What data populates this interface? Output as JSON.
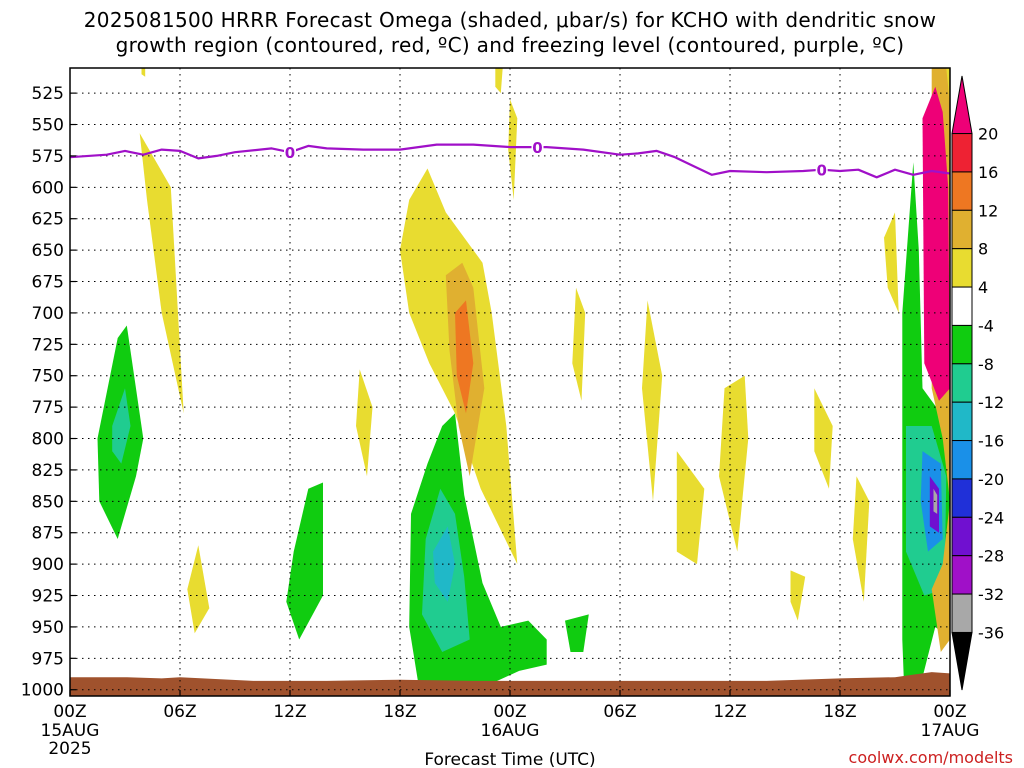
{
  "chart_data": {
    "type": "heatmap",
    "title_line1": "2025081500 HRRR Forecast Omega (shaded, μbar/s) for KCHO with dendritic snow",
    "title_line2": "growth region (contoured, red, ºC) and freezing level (contoured, purple, ºC)",
    "xlabel": "Forecast Time (UTC)",
    "credit": "coolwx.com/modelts",
    "x_ticks": [
      {
        "hours": 0,
        "label": "00Z"
      },
      {
        "hours": 6,
        "label": "06Z"
      },
      {
        "hours": 12,
        "label": "12Z"
      },
      {
        "hours": 18,
        "label": "18Z"
      },
      {
        "hours": 24,
        "label": "00Z"
      },
      {
        "hours": 30,
        "label": "06Z"
      },
      {
        "hours": 36,
        "label": "12Z"
      },
      {
        "hours": 42,
        "label": "18Z"
      },
      {
        "hours": 48,
        "label": "00Z"
      }
    ],
    "date_labels": [
      {
        "hours": 0,
        "lines": [
          "15AUG",
          "2025"
        ]
      },
      {
        "hours": 24,
        "lines": [
          "16AUG"
        ]
      },
      {
        "hours": 48,
        "lines": [
          "17AUG"
        ]
      }
    ],
    "y_ticks": [
      525,
      550,
      575,
      600,
      625,
      650,
      675,
      700,
      725,
      750,
      775,
      800,
      825,
      850,
      875,
      900,
      925,
      950,
      975,
      1000
    ],
    "ylim_hPa": [
      505,
      1005
    ],
    "xlim_hours": [
      0,
      48
    ],
    "grid": true,
    "colorbar": {
      "levels": [
        {
          "label": "",
          "color": "#ee0077"
        },
        {
          "label": "20",
          "color": "#ee2233"
        },
        {
          "label": "16",
          "color": "#ee7722"
        },
        {
          "label": "12",
          "color": "#e0b030"
        },
        {
          "label": "8",
          "color": "#e8dc30"
        },
        {
          "label": "4",
          "color": "#ffffff"
        },
        {
          "label": "-4",
          "color": "#10cc10"
        },
        {
          "label": "-8",
          "color": "#20cc90"
        },
        {
          "label": "-12",
          "color": "#20b8c8"
        },
        {
          "label": "-16",
          "color": "#1a90e8"
        },
        {
          "label": "-20",
          "color": "#2030d8"
        },
        {
          "label": "-24",
          "color": "#7010d0"
        },
        {
          "label": "-28",
          "color": "#a010c8"
        },
        {
          "label": "-32",
          "color": "#a8a8a8"
        },
        {
          "label": "-36",
          "color": "#000000"
        }
      ]
    },
    "freezing_level": {
      "label": "0",
      "color": "#a010c8",
      "points": [
        [
          0,
          576
        ],
        [
          2,
          574
        ],
        [
          3,
          571
        ],
        [
          4,
          574
        ],
        [
          5,
          570
        ],
        [
          6,
          571
        ],
        [
          7,
          577
        ],
        [
          8,
          575
        ],
        [
          9,
          572
        ],
        [
          11,
          569
        ],
        [
          12,
          572
        ],
        [
          13,
          567
        ],
        [
          14,
          569
        ],
        [
          16,
          570
        ],
        [
          18,
          570
        ],
        [
          20,
          566
        ],
        [
          22,
          566
        ],
        [
          24,
          568
        ],
        [
          26,
          568
        ],
        [
          28,
          570
        ],
        [
          30,
          574
        ],
        [
          31,
          573
        ],
        [
          32,
          571
        ],
        [
          33,
          576
        ],
        [
          34,
          583
        ],
        [
          35,
          590
        ],
        [
          36,
          587
        ],
        [
          38,
          588
        ],
        [
          40,
          587
        ],
        [
          41,
          586
        ],
        [
          42,
          587
        ],
        [
          43,
          586
        ],
        [
          44,
          592
        ],
        [
          45,
          586
        ],
        [
          46,
          590
        ],
        [
          47,
          587
        ],
        [
          48,
          589
        ]
      ],
      "label_hours": [
        12,
        25.5,
        41
      ]
    },
    "omega_regions": [
      {
        "value": 6,
        "points": [
          [
            3.8,
            557
          ],
          [
            5.5,
            600
          ],
          [
            6.2,
            780
          ],
          [
            5,
            700
          ],
          [
            4.2,
            610
          ]
        ]
      },
      {
        "value": 6,
        "points": [
          [
            7,
            885
          ],
          [
            7.6,
            935
          ],
          [
            6.8,
            955
          ],
          [
            6.4,
            920
          ]
        ]
      },
      {
        "value": 6,
        "points": [
          [
            15.8,
            745
          ],
          [
            16.5,
            775
          ],
          [
            16.2,
            830
          ],
          [
            15.6,
            790
          ]
        ]
      },
      {
        "value": 6,
        "points": [
          [
            18.5,
            610
          ],
          [
            19.5,
            585
          ],
          [
            20.5,
            620
          ],
          [
            21.5,
            640
          ],
          [
            22.5,
            660
          ],
          [
            23,
            700
          ],
          [
            23.8,
            790
          ],
          [
            24.4,
            900
          ],
          [
            22.4,
            840
          ],
          [
            21,
            780
          ],
          [
            19.6,
            740
          ],
          [
            18.5,
            700
          ],
          [
            18,
            650
          ]
        ]
      },
      {
        "value": 10,
        "points": [
          [
            20.5,
            670
          ],
          [
            21.4,
            660
          ],
          [
            22,
            680
          ],
          [
            22.6,
            760
          ],
          [
            21.8,
            830
          ],
          [
            21.2,
            790
          ],
          [
            20.7,
            730
          ]
        ]
      },
      {
        "value": 14,
        "points": [
          [
            21,
            700
          ],
          [
            21.6,
            690
          ],
          [
            22,
            740
          ],
          [
            21.6,
            780
          ],
          [
            21.1,
            750
          ]
        ]
      },
      {
        "value": 6,
        "points": [
          [
            24,
            530
          ],
          [
            24.4,
            545
          ],
          [
            24.2,
            610
          ],
          [
            23.9,
            570
          ]
        ]
      },
      {
        "value": 6,
        "points": [
          [
            23.2,
            505
          ],
          [
            23.6,
            505
          ],
          [
            23.5,
            525
          ],
          [
            23.2,
            520
          ]
        ]
      },
      {
        "value": 6,
        "points": [
          [
            27.6,
            680
          ],
          [
            28.1,
            700
          ],
          [
            27.9,
            770
          ],
          [
            27.4,
            740
          ]
        ]
      },
      {
        "value": 6,
        "points": [
          [
            31.5,
            690
          ],
          [
            32.3,
            750
          ],
          [
            31.8,
            850
          ],
          [
            31.2,
            760
          ]
        ]
      },
      {
        "value": 6,
        "points": [
          [
            33.1,
            810
          ],
          [
            34.6,
            840
          ],
          [
            34.2,
            900
          ],
          [
            33.1,
            890
          ]
        ]
      },
      {
        "value": 6,
        "points": [
          [
            35.7,
            760
          ],
          [
            36.8,
            750
          ],
          [
            37,
            800
          ],
          [
            36.4,
            890
          ],
          [
            35.4,
            830
          ]
        ]
      },
      {
        "value": 6,
        "points": [
          [
            39.3,
            905
          ],
          [
            40.1,
            910
          ],
          [
            39.7,
            945
          ],
          [
            39.3,
            930
          ]
        ]
      },
      {
        "value": 6,
        "points": [
          [
            40.6,
            760
          ],
          [
            41.6,
            790
          ],
          [
            41.4,
            840
          ],
          [
            40.6,
            810
          ]
        ]
      },
      {
        "value": 6,
        "points": [
          [
            42.9,
            830
          ],
          [
            43.6,
            850
          ],
          [
            43.3,
            930
          ],
          [
            42.7,
            880
          ]
        ]
      },
      {
        "value": 6,
        "points": [
          [
            44.4,
            640
          ],
          [
            45,
            620
          ],
          [
            45.2,
            700
          ],
          [
            44.6,
            680
          ]
        ]
      },
      {
        "value": 6,
        "points": [
          [
            3.9,
            505
          ],
          [
            4.1,
            505
          ],
          [
            4.1,
            512
          ],
          [
            3.9,
            510
          ]
        ]
      },
      {
        "value": -6,
        "points": [
          [
            1.5,
            800
          ],
          [
            2.6,
            720
          ],
          [
            3.1,
            710
          ],
          [
            4,
            800
          ],
          [
            3.6,
            830
          ],
          [
            2.6,
            880
          ],
          [
            1.6,
            850
          ]
        ]
      },
      {
        "value": -10,
        "points": [
          [
            2.3,
            790
          ],
          [
            3,
            760
          ],
          [
            3.3,
            790
          ],
          [
            2.8,
            820
          ],
          [
            2.3,
            810
          ]
        ]
      },
      {
        "value": -6,
        "points": [
          [
            12.2,
            890
          ],
          [
            13,
            840
          ],
          [
            13.8,
            835
          ],
          [
            13.8,
            925
          ],
          [
            12.5,
            960
          ],
          [
            11.8,
            930
          ]
        ]
      },
      {
        "value": -6,
        "points": [
          [
            18.6,
            860
          ],
          [
            19.5,
            820
          ],
          [
            20.3,
            790
          ],
          [
            21,
            780
          ],
          [
            21.5,
            845
          ],
          [
            22.5,
            915
          ],
          [
            23.5,
            950
          ],
          [
            25,
            945
          ],
          [
            26,
            960
          ],
          [
            26,
            980
          ],
          [
            24.5,
            985
          ],
          [
            23,
            995
          ],
          [
            21,
            1000
          ],
          [
            19,
            995
          ],
          [
            18.5,
            950
          ]
        ]
      },
      {
        "value": -10,
        "points": [
          [
            19.4,
            880
          ],
          [
            20.2,
            840
          ],
          [
            21,
            860
          ],
          [
            21.5,
            910
          ],
          [
            21.8,
            960
          ],
          [
            20.3,
            970
          ],
          [
            19.2,
            940
          ]
        ]
      },
      {
        "value": -14,
        "points": [
          [
            19.8,
            890
          ],
          [
            20.6,
            870
          ],
          [
            21,
            900
          ],
          [
            20.6,
            930
          ],
          [
            19.9,
            915
          ]
        ]
      },
      {
        "value": -6,
        "points": [
          [
            27,
            945
          ],
          [
            28.3,
            940
          ],
          [
            28,
            970
          ],
          [
            27.3,
            970
          ]
        ]
      },
      {
        "value": -6,
        "points": [
          [
            45.4,
            700
          ],
          [
            46,
            580
          ],
          [
            46.3,
            650
          ],
          [
            46.5,
            760
          ],
          [
            47.5,
            780
          ],
          [
            48,
            800
          ],
          [
            48,
            960
          ],
          [
            47.2,
            950
          ],
          [
            46.5,
            990
          ],
          [
            45.5,
            1000
          ],
          [
            45.4,
            960
          ]
        ]
      },
      {
        "value": -10,
        "points": [
          [
            45.6,
            790
          ],
          [
            47,
            790
          ],
          [
            47.8,
            830
          ],
          [
            47.7,
            920
          ],
          [
            46.6,
            925
          ],
          [
            45.6,
            890
          ]
        ]
      },
      {
        "value": -18,
        "points": [
          [
            46.5,
            810
          ],
          [
            47.5,
            820
          ],
          [
            47.6,
            880
          ],
          [
            46.8,
            890
          ],
          [
            46.4,
            850
          ]
        ]
      },
      {
        "value": -26,
        "points": [
          [
            46.9,
            830
          ],
          [
            47.4,
            840
          ],
          [
            47.4,
            875
          ],
          [
            46.9,
            870
          ]
        ]
      },
      {
        "value": -34,
        "points": [
          [
            47.1,
            840
          ],
          [
            47.3,
            845
          ],
          [
            47.3,
            860
          ],
          [
            47.1,
            858
          ]
        ]
      },
      {
        "value": 10,
        "points": [
          [
            47,
            505
          ],
          [
            48,
            505
          ],
          [
            48,
            960
          ],
          [
            47.5,
            970
          ],
          [
            47,
            920
          ],
          [
            47.6,
            900
          ],
          [
            48,
            850
          ],
          [
            47.6,
            800
          ],
          [
            47,
            760
          ]
        ]
      },
      {
        "value": 22,
        "points": [
          [
            46.5,
            545
          ],
          [
            47.2,
            520
          ],
          [
            47.6,
            540
          ],
          [
            47.9,
            600
          ],
          [
            48,
            760
          ],
          [
            47.4,
            770
          ],
          [
            46.6,
            740
          ]
        ]
      },
      {
        "value": 6,
        "points": [
          [
            47.8,
            505
          ],
          [
            48,
            505
          ],
          [
            48,
            540
          ],
          [
            47.9,
            520
          ]
        ]
      }
    ],
    "terrain": {
      "color": "#a0522d",
      "points": [
        [
          0,
          990
        ],
        [
          3,
          990
        ],
        [
          5,
          991
        ],
        [
          6,
          990
        ],
        [
          10,
          993
        ],
        [
          14,
          993
        ],
        [
          18,
          992
        ],
        [
          22,
          993
        ],
        [
          26,
          993
        ],
        [
          30,
          993
        ],
        [
          34,
          993
        ],
        [
          38,
          993
        ],
        [
          42,
          991
        ],
        [
          45,
          990
        ],
        [
          46,
          988
        ],
        [
          47,
          986
        ],
        [
          48,
          987
        ]
      ]
    }
  }
}
